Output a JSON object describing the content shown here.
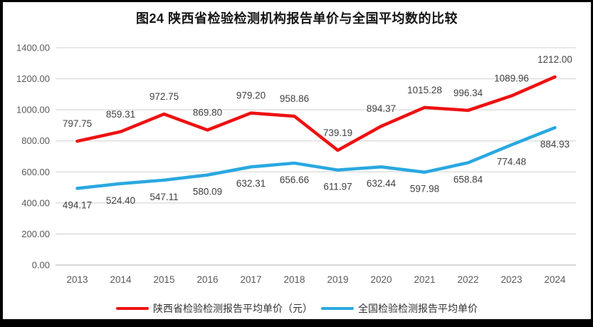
{
  "title": "图24 陕西省检验检测机构报告单价与全国平均数的比较",
  "colors": {
    "shaanxi_line": "#ee1111",
    "national_line": "#29a8e0",
    "gridline": "#d9d9d9",
    "axis_line": "#bfbfbf",
    "tick_label": "#595959",
    "data_label": "#404040"
  },
  "chart_data": {
    "type": "line",
    "title": "图24 陕西省检验检测机构报告单价与全国平均数的比较",
    "xlabel": "",
    "ylabel": "",
    "categories": [
      "2013",
      "2014",
      "2015",
      "2016",
      "2017",
      "2018",
      "2019",
      "2020",
      "2021",
      "2022",
      "2023",
      "2024"
    ],
    "series": [
      {
        "name": "陕西省检验检测报告平均单价（元）",
        "color": "#ee1111",
        "label_position": "above",
        "values": [
          797.75,
          859.31,
          972.75,
          869.8,
          979.2,
          958.86,
          739.19,
          894.37,
          1015.28,
          996.34,
          1089.96,
          1212.0
        ]
      },
      {
        "name": "全国检验检测报告平均单价",
        "color": "#29a8e0",
        "label_position": "below",
        "values": [
          494.17,
          524.4,
          547.11,
          580.09,
          632.31,
          656.66,
          611.97,
          632.44,
          597.98,
          658.84,
          774.48,
          884.93
        ]
      }
    ],
    "ylim": [
      0,
      1400
    ],
    "ytick_step": 200,
    "ytick_labels": [
      "0.00",
      "200.00",
      "400.00",
      "600.00",
      "800.00",
      "1000.00",
      "1200.00",
      "1400.00"
    ],
    "grid": true,
    "legend_position": "bottom"
  }
}
